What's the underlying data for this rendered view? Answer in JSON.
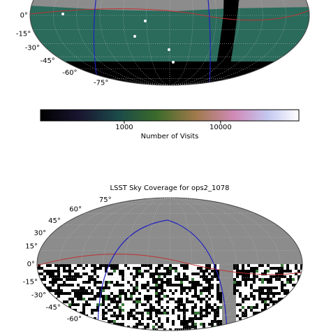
{
  "chart_data": [
    {
      "type": "map",
      "lat_ticks": [
        {
          "value": 0,
          "label": "0°"
        },
        {
          "value": -15,
          "label": "-15°"
        },
        {
          "value": -30,
          "label": "-30°"
        },
        {
          "value": -45,
          "label": "-45°"
        },
        {
          "value": -60,
          "label": "-60°"
        },
        {
          "value": -75,
          "label": "-75°"
        }
      ],
      "colorbar": {
        "scale": "log",
        "xlim": [
          135,
          65000
        ],
        "xticks": [
          1000,
          10000
        ],
        "label": "Number of Visits"
      }
    },
    {
      "type": "map",
      "title": "LSST Sky Coverage for ops2_1078",
      "lat_ticks": [
        {
          "value": 75,
          "label": "75°"
        },
        {
          "value": 60,
          "label": "60°"
        },
        {
          "value": 45,
          "label": "45°"
        },
        {
          "value": 30,
          "label": "30°"
        },
        {
          "value": 15,
          "label": "15°"
        },
        {
          "value": 0,
          "label": "0°"
        },
        {
          "value": -15,
          "label": "-15°"
        },
        {
          "value": -30,
          "label": "-30°"
        },
        {
          "value": -45,
          "label": "-45°"
        },
        {
          "value": -60,
          "label": "-60°"
        }
      ]
    }
  ]
}
